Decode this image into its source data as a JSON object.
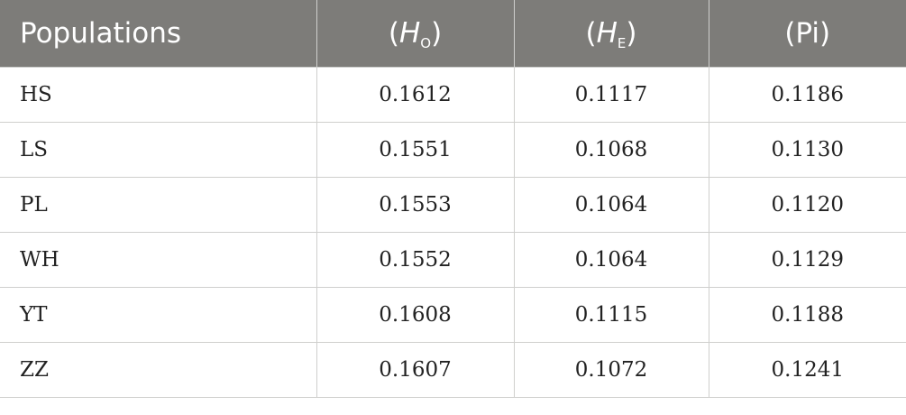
{
  "table": {
    "headers": {
      "populations": "Populations",
      "ho": {
        "open": "(",
        "symbol": "H",
        "sub": "O",
        "close": ")"
      },
      "he": {
        "open": "(",
        "symbol": "H",
        "sub": "E",
        "close": ")"
      },
      "pi": "(Pi)"
    },
    "rows": [
      {
        "population": "HS",
        "ho": "0.1612",
        "he": "0.1117",
        "pi": "0.1186"
      },
      {
        "population": "LS",
        "ho": "0.1551",
        "he": "0.1068",
        "pi": "0.1130"
      },
      {
        "population": "PL",
        "ho": "0.1553",
        "he": "0.1064",
        "pi": "0.1120"
      },
      {
        "population": "WH",
        "ho": "0.1552",
        "he": "0.1064",
        "pi": "0.1129"
      },
      {
        "population": "YT",
        "ho": "0.1608",
        "he": "0.1115",
        "pi": "0.1188"
      },
      {
        "population": "ZZ",
        "ho": "0.1607",
        "he": "0.1072",
        "pi": "0.1241"
      }
    ],
    "colors": {
      "header_bg": "#7d7c79",
      "header_text": "#ffffff",
      "grid_line": "#cfcfcd",
      "body_text": "#222222"
    }
  }
}
